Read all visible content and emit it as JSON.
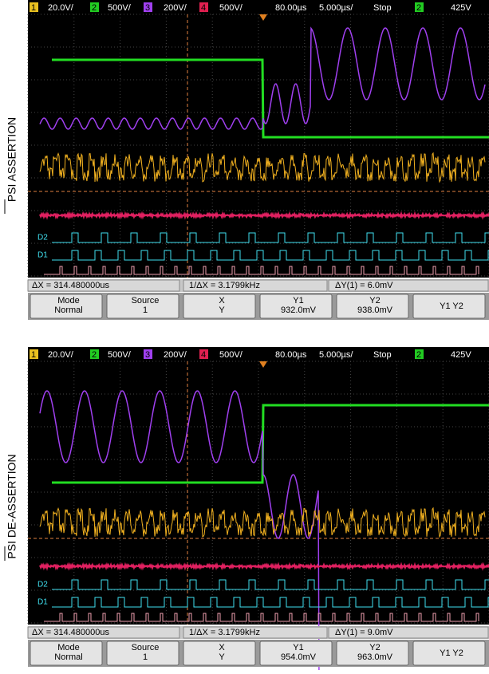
{
  "panels": [
    {
      "side_label": "PSI ASSERTION",
      "status": [
        "1",
        "20.0V/",
        "2",
        "500V/",
        "3",
        "200V/",
        "4",
        "500V/",
        "80.00µs",
        "5.000µs/",
        "Stop",
        "2",
        "425V"
      ],
      "digital_labels": [
        "D2",
        "D1"
      ],
      "measurements": [
        "ΔX = 314.480000us",
        "1/ΔX = 3.1799kHz",
        "ΔY(1) = 6.0mV"
      ],
      "softkeys": [
        [
          "Mode",
          "Normal"
        ],
        [
          "Source",
          "1"
        ],
        [
          "X",
          "Y"
        ],
        [
          "Y1",
          "932.0mV"
        ],
        [
          "Y2",
          "938.0mV"
        ],
        [
          "Y1 Y2"
        ]
      ]
    },
    {
      "side_label": "PSI DE-ASSERTION",
      "status": [
        "1",
        "20.0V/",
        "2",
        "500V/",
        "3",
        "200V/",
        "4",
        "500V/",
        "80.00µs",
        "5.000µs/",
        "Stop",
        "2",
        "425V"
      ],
      "digital_labels": [
        "D2",
        "D1"
      ],
      "measurements": [
        "ΔX = 314.480000us",
        "1/ΔX = 3.1799kHz",
        "ΔY(1) = 9.0mV"
      ],
      "softkeys": [
        [
          "Mode",
          "Normal"
        ],
        [
          "Source",
          "1"
        ],
        [
          "X",
          "Y"
        ],
        [
          "Y1",
          "954.0mV"
        ],
        [
          "Y2",
          "963.0mV"
        ],
        [
          "Y1 Y2"
        ]
      ]
    }
  ]
}
